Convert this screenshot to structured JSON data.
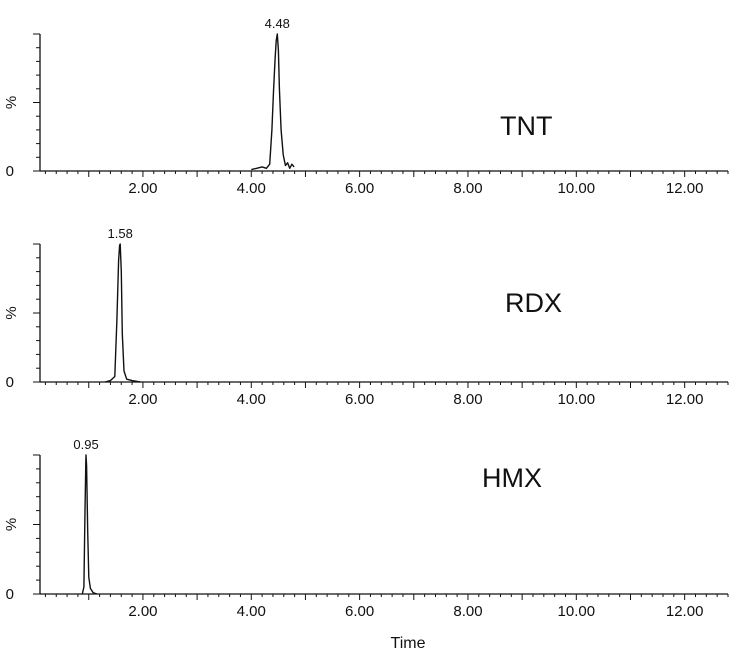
{
  "chart_data": [
    {
      "type": "line",
      "annotation": "TNT",
      "peak_label": "4.48",
      "peak_x": 4.48,
      "ylabel": "%",
      "y_ticks": [
        "0"
      ],
      "x_ticks": [
        "2.00",
        "4.00",
        "6.00",
        "8.00",
        "10.00",
        "12.00"
      ],
      "xlim": [
        0.1,
        12.8
      ],
      "ylim": [
        0,
        100
      ],
      "x": [
        4.0,
        4.1,
        4.2,
        4.28,
        4.34,
        4.38,
        4.41,
        4.44,
        4.46,
        4.48,
        4.5,
        4.52,
        4.55,
        4.59,
        4.63,
        4.67,
        4.71,
        4.75,
        4.79
      ],
      "y": [
        1,
        2,
        3,
        2,
        5,
        30,
        58,
        82,
        95,
        100,
        88,
        60,
        30,
        12,
        4,
        6,
        2,
        5,
        3
      ]
    },
    {
      "type": "line",
      "annotation": "RDX",
      "peak_label": "1.58",
      "peak_x": 1.58,
      "ylabel": "%",
      "y_ticks": [
        "0"
      ],
      "x_ticks": [
        "2.00",
        "4.00",
        "6.00",
        "8.00",
        "10.00",
        "12.00"
      ],
      "xlim": [
        0.1,
        12.8
      ],
      "ylim": [
        0,
        100
      ],
      "x": [
        1.3,
        1.4,
        1.48,
        1.52,
        1.55,
        1.57,
        1.58,
        1.6,
        1.62,
        1.65,
        1.7,
        1.8,
        1.95
      ],
      "y": [
        0,
        1,
        4,
        45,
        88,
        99,
        100,
        80,
        35,
        8,
        2,
        1,
        0
      ]
    },
    {
      "type": "line",
      "annotation": "HMX",
      "peak_label": "0.95",
      "peak_x": 0.95,
      "ylabel": "%",
      "y_ticks": [
        "0"
      ],
      "x_ticks": [
        "2.00",
        "4.00",
        "6.00",
        "8.00",
        "10.00",
        "12.00"
      ],
      "xlim": [
        0.1,
        12.8
      ],
      "ylim": [
        0,
        100
      ],
      "x_label": "Time",
      "x": [
        0.88,
        0.91,
        0.93,
        0.945,
        0.95,
        0.96,
        0.98,
        1.0,
        1.03,
        1.08,
        1.15
      ],
      "y": [
        0,
        5,
        60,
        94,
        100,
        92,
        45,
        12,
        4,
        1,
        0
      ]
    }
  ]
}
